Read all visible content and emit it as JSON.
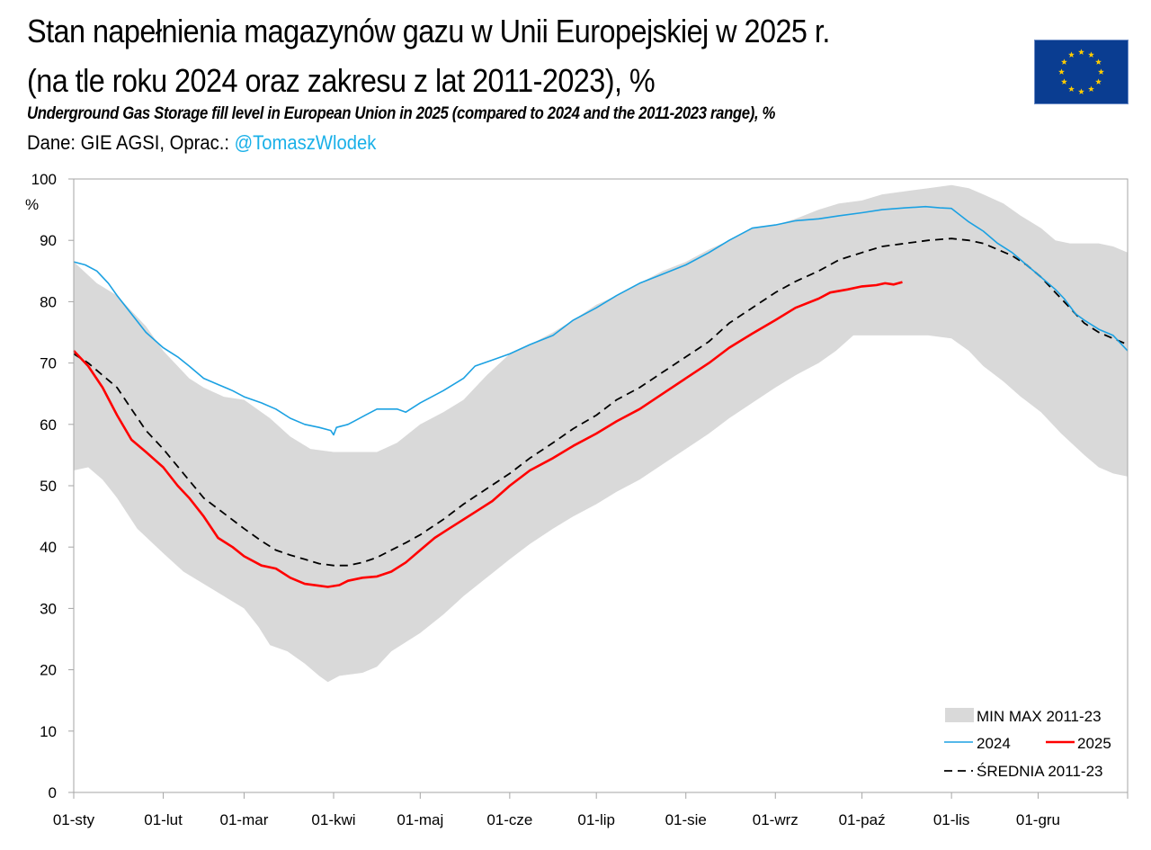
{
  "header": {
    "title_line1": "Stan napełnienia magazynów gazu w Unii Europejskiej w 2025 r.",
    "title_line2": "(na tle roku 2024 oraz zakresu z lat 2011-2023), %",
    "subtitle": "Underground Gas Storage fill level in European Union in 2025 (compared to 2024 and the 2011-2023 range), %",
    "source_prefix": "Dane: GIE AGSI, Oprac.: ",
    "source_handle": "@TomaszWlodek",
    "flag_icon": "eu-flag-icon"
  },
  "colors": {
    "band": "#d9d9d9",
    "series_2024": "#1ba1e2",
    "series_2025": "#ff0000",
    "mean": "#000000",
    "handle": "#1ab0e8",
    "flag_blue": "#0a3d91",
    "flag_star": "#ffcc00"
  },
  "chart_data": {
    "type": "line",
    "title": "Stan napełnienia magazynów gazu w Unii Europejskiej w 2025 r.",
    "xlabel": "",
    "ylabel": "%",
    "x_unit": "day of year",
    "xlim": [
      0,
      365
    ],
    "ylim": [
      0,
      100
    ],
    "yticks": [
      0,
      10,
      20,
      30,
      40,
      50,
      60,
      70,
      80,
      90,
      100
    ],
    "xticks": [
      {
        "day": 0,
        "label": "01-sty"
      },
      {
        "day": 31,
        "label": "01-lut"
      },
      {
        "day": 59,
        "label": "01-mar"
      },
      {
        "day": 90,
        "label": "01-kwi"
      },
      {
        "day": 120,
        "label": "01-maj"
      },
      {
        "day": 151,
        "label": "01-cze"
      },
      {
        "day": 181,
        "label": "01-lip"
      },
      {
        "day": 212,
        "label": "01-sie"
      },
      {
        "day": 243,
        "label": "01-wrz"
      },
      {
        "day": 273,
        "label": "01-paź"
      },
      {
        "day": 304,
        "label": "01-lis"
      },
      {
        "day": 334,
        "label": "01-gru"
      }
    ],
    "grid": false,
    "legend_position": "bottom-right",
    "band": {
      "name": "MIN MAX 2011-23",
      "upper": [
        [
          0,
          86.5
        ],
        [
          8,
          83
        ],
        [
          15,
          81
        ],
        [
          25,
          76
        ],
        [
          31,
          72
        ],
        [
          40,
          67.5
        ],
        [
          45,
          66
        ],
        [
          52,
          64.5
        ],
        [
          59,
          64
        ],
        [
          68,
          61
        ],
        [
          75,
          58
        ],
        [
          82,
          56
        ],
        [
          90,
          55.5
        ],
        [
          98,
          55.5
        ],
        [
          105,
          55.5
        ],
        [
          112,
          57
        ],
        [
          120,
          60
        ],
        [
          128,
          62
        ],
        [
          135,
          64
        ],
        [
          143,
          68
        ],
        [
          151,
          71.5
        ],
        [
          158,
          73
        ],
        [
          166,
          75
        ],
        [
          173,
          77
        ],
        [
          181,
          79.5
        ],
        [
          188,
          81
        ],
        [
          196,
          83
        ],
        [
          204,
          85
        ],
        [
          212,
          86.5
        ],
        [
          220,
          88.5
        ],
        [
          227,
          90
        ],
        [
          235,
          92
        ],
        [
          243,
          92.5
        ],
        [
          250,
          93.5
        ],
        [
          258,
          95
        ],
        [
          265,
          96
        ],
        [
          273,
          96.5
        ],
        [
          280,
          97.5
        ],
        [
          288,
          98
        ],
        [
          296,
          98.5
        ],
        [
          304,
          99
        ],
        [
          310,
          98.5
        ],
        [
          315,
          97.5
        ],
        [
          322,
          96
        ],
        [
          328,
          94
        ],
        [
          335,
          92
        ],
        [
          340,
          90
        ],
        [
          345,
          89.5
        ],
        [
          355,
          89.5
        ],
        [
          360,
          89
        ],
        [
          365,
          88
        ]
      ],
      "lower": [
        [
          0,
          52.5
        ],
        [
          5,
          53
        ],
        [
          10,
          51
        ],
        [
          15,
          48
        ],
        [
          22,
          43
        ],
        [
          31,
          39
        ],
        [
          38,
          36
        ],
        [
          45,
          34
        ],
        [
          52,
          32
        ],
        [
          59,
          30
        ],
        [
          64,
          27
        ],
        [
          68,
          24
        ],
        [
          74,
          23
        ],
        [
          80,
          21
        ],
        [
          85,
          19
        ],
        [
          88,
          18
        ],
        [
          92,
          19
        ],
        [
          100,
          19.5
        ],
        [
          105,
          20.5
        ],
        [
          110,
          23
        ],
        [
          120,
          26
        ],
        [
          128,
          29
        ],
        [
          135,
          32
        ],
        [
          143,
          35
        ],
        [
          151,
          38
        ],
        [
          158,
          40.5
        ],
        [
          166,
          43
        ],
        [
          173,
          45
        ],
        [
          181,
          47
        ],
        [
          188,
          49
        ],
        [
          196,
          51
        ],
        [
          204,
          53.5
        ],
        [
          212,
          56
        ],
        [
          220,
          58.5
        ],
        [
          227,
          61
        ],
        [
          235,
          63.5
        ],
        [
          243,
          66
        ],
        [
          250,
          68
        ],
        [
          258,
          70
        ],
        [
          264,
          72
        ],
        [
          270,
          74.5
        ],
        [
          280,
          74.5
        ],
        [
          288,
          74.5
        ],
        [
          296,
          74.5
        ],
        [
          304,
          74
        ],
        [
          310,
          72
        ],
        [
          315,
          69.5
        ],
        [
          322,
          67
        ],
        [
          328,
          64.5
        ],
        [
          335,
          62
        ],
        [
          342,
          58.5
        ],
        [
          350,
          55
        ],
        [
          355,
          53
        ],
        [
          360,
          52
        ],
        [
          365,
          51.5
        ]
      ]
    },
    "series": [
      {
        "name": "2024",
        "points": [
          [
            0,
            86.5
          ],
          [
            4,
            86
          ],
          [
            8,
            85
          ],
          [
            12,
            83
          ],
          [
            15,
            81
          ],
          [
            20,
            78
          ],
          [
            25,
            75
          ],
          [
            31,
            72.5
          ],
          [
            36,
            71
          ],
          [
            40,
            69.5
          ],
          [
            45,
            67.5
          ],
          [
            50,
            66.5
          ],
          [
            55,
            65.5
          ],
          [
            59,
            64.5
          ],
          [
            65,
            63.5
          ],
          [
            70,
            62.5
          ],
          [
            75,
            61
          ],
          [
            80,
            60
          ],
          [
            85,
            59.5
          ],
          [
            89,
            59
          ],
          [
            90,
            58.3
          ],
          [
            91,
            59.5
          ],
          [
            95,
            60
          ],
          [
            97,
            60.5
          ],
          [
            101,
            61.5
          ],
          [
            105,
            62.5
          ],
          [
            112,
            62.5
          ],
          [
            115,
            62
          ],
          [
            120,
            63.5
          ],
          [
            128,
            65.5
          ],
          [
            135,
            67.5
          ],
          [
            139,
            69.5
          ],
          [
            145,
            70.5
          ],
          [
            151,
            71.5
          ],
          [
            158,
            73
          ],
          [
            166,
            74.5
          ],
          [
            173,
            77
          ],
          [
            181,
            79
          ],
          [
            188,
            81
          ],
          [
            196,
            83
          ],
          [
            204,
            84.5
          ],
          [
            212,
            86
          ],
          [
            220,
            88
          ],
          [
            227,
            90
          ],
          [
            235,
            92
          ],
          [
            243,
            92.5
          ],
          [
            250,
            93.2
          ],
          [
            258,
            93.5
          ],
          [
            265,
            94
          ],
          [
            273,
            94.5
          ],
          [
            280,
            95
          ],
          [
            288,
            95.3
          ],
          [
            295,
            95.5
          ],
          [
            300,
            95.3
          ],
          [
            304,
            95.2
          ],
          [
            310,
            93
          ],
          [
            315,
            91.5
          ],
          [
            320,
            89.5
          ],
          [
            325,
            88
          ],
          [
            330,
            86
          ],
          [
            335,
            84
          ],
          [
            340,
            82
          ],
          [
            343,
            80.5
          ],
          [
            347,
            78
          ],
          [
            350,
            77
          ],
          [
            355,
            75.5
          ],
          [
            360,
            74.5
          ],
          [
            365,
            72
          ]
        ]
      },
      {
        "name": "2025",
        "points": [
          [
            0,
            72
          ],
          [
            5,
            69.5
          ],
          [
            10,
            66
          ],
          [
            15,
            61.5
          ],
          [
            20,
            57.5
          ],
          [
            25,
            55.5
          ],
          [
            31,
            53
          ],
          [
            36,
            50
          ],
          [
            40,
            48
          ],
          [
            45,
            45
          ],
          [
            50,
            41.5
          ],
          [
            55,
            40
          ],
          [
            59,
            38.5
          ],
          [
            65,
            37
          ],
          [
            70,
            36.5
          ],
          [
            75,
            35
          ],
          [
            80,
            34
          ],
          [
            85,
            33.7
          ],
          [
            88,
            33.5
          ],
          [
            92,
            33.8
          ],
          [
            95,
            34.5
          ],
          [
            100,
            35
          ],
          [
            105,
            35.2
          ],
          [
            110,
            36
          ],
          [
            115,
            37.5
          ],
          [
            120,
            39.5
          ],
          [
            125,
            41.5
          ],
          [
            130,
            43
          ],
          [
            135,
            44.5
          ],
          [
            140,
            46
          ],
          [
            145,
            47.5
          ],
          [
            151,
            50
          ],
          [
            158,
            52.5
          ],
          [
            166,
            54.5
          ],
          [
            173,
            56.5
          ],
          [
            181,
            58.5
          ],
          [
            188,
            60.5
          ],
          [
            196,
            62.5
          ],
          [
            204,
            65
          ],
          [
            212,
            67.5
          ],
          [
            220,
            70
          ],
          [
            227,
            72.5
          ],
          [
            235,
            74.8
          ],
          [
            243,
            77
          ],
          [
            250,
            79
          ],
          [
            258,
            80.5
          ],
          [
            262,
            81.5
          ],
          [
            268,
            82
          ],
          [
            273,
            82.5
          ],
          [
            278,
            82.7
          ],
          [
            281,
            83
          ],
          [
            284,
            82.8
          ],
          [
            287,
            83.2
          ]
        ]
      },
      {
        "name": "ŚREDNIA 2011-23",
        "points": [
          [
            0,
            71.5
          ],
          [
            5,
            70
          ],
          [
            10,
            68
          ],
          [
            15,
            66
          ],
          [
            20,
            62.5
          ],
          [
            25,
            59
          ],
          [
            31,
            56
          ],
          [
            38,
            52
          ],
          [
            45,
            48
          ],
          [
            52,
            45.5
          ],
          [
            59,
            43
          ],
          [
            65,
            41
          ],
          [
            70,
            39.5
          ],
          [
            75,
            38.7
          ],
          [
            80,
            38
          ],
          [
            85,
            37.3
          ],
          [
            90,
            37
          ],
          [
            95,
            37
          ],
          [
            100,
            37.5
          ],
          [
            105,
            38.3
          ],
          [
            110,
            39.5
          ],
          [
            115,
            40.7
          ],
          [
            120,
            42
          ],
          [
            128,
            44.5
          ],
          [
            135,
            47
          ],
          [
            143,
            49.5
          ],
          [
            151,
            52
          ],
          [
            158,
            54.5
          ],
          [
            166,
            57
          ],
          [
            173,
            59.3
          ],
          [
            181,
            61.5
          ],
          [
            188,
            64
          ],
          [
            196,
            66
          ],
          [
            204,
            68.5
          ],
          [
            212,
            71
          ],
          [
            220,
            73.5
          ],
          [
            227,
            76.5
          ],
          [
            235,
            79
          ],
          [
            243,
            81.5
          ],
          [
            250,
            83.3
          ],
          [
            258,
            85
          ],
          [
            265,
            86.8
          ],
          [
            273,
            88
          ],
          [
            280,
            89
          ],
          [
            288,
            89.5
          ],
          [
            296,
            90
          ],
          [
            304,
            90.3
          ],
          [
            310,
            90
          ],
          [
            315,
            89.5
          ],
          [
            320,
            88.5
          ],
          [
            325,
            87.5
          ],
          [
            330,
            86
          ],
          [
            335,
            84
          ],
          [
            340,
            81.5
          ],
          [
            345,
            79
          ],
          [
            350,
            76.5
          ],
          [
            355,
            75
          ],
          [
            360,
            74
          ],
          [
            365,
            73
          ]
        ]
      }
    ],
    "legend": {
      "band_label": "MIN MAX 2011-23",
      "label_2024": "2024",
      "label_2025": "2025",
      "label_mean": "ŚREDNIA 2011-23"
    }
  }
}
